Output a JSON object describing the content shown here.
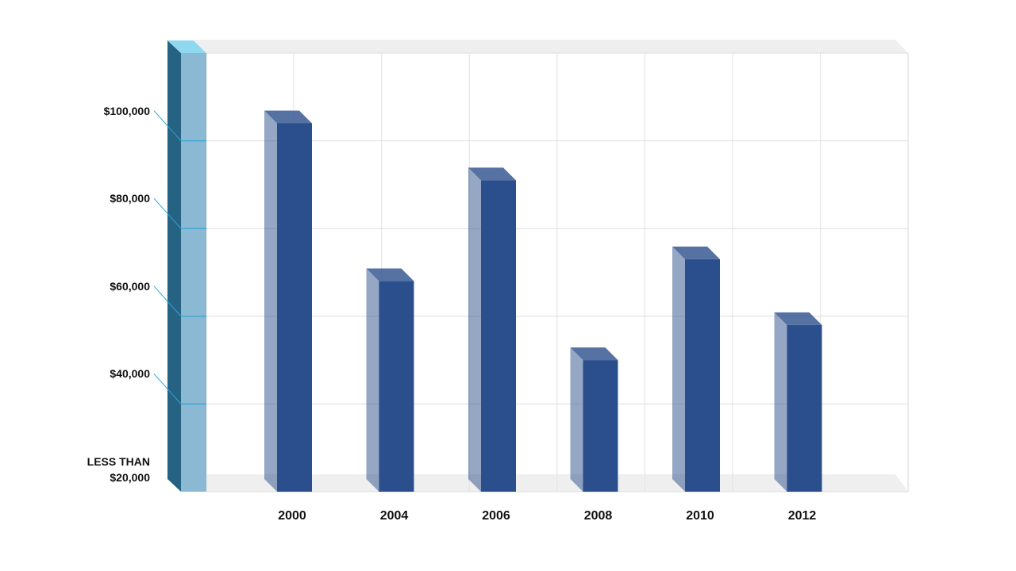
{
  "chart_data": {
    "type": "bar",
    "categories": [
      "2000",
      "2004",
      "2006",
      "2008",
      "2010",
      "2012"
    ],
    "values": [
      104000,
      68000,
      91000,
      50000,
      73000,
      58000
    ],
    "color": "#2b4f8c",
    "ylim": [
      20000,
      120000
    ],
    "yticks": [
      {
        "value": 20000,
        "label": "LESS THAN $20,000"
      },
      {
        "value": 40000,
        "label": "$40,000"
      },
      {
        "value": 60000,
        "label": "$60,000"
      },
      {
        "value": 80000,
        "label": "$80,000"
      },
      {
        "value": 100000,
        "label": "$100,000"
      }
    ],
    "grid": true
  }
}
